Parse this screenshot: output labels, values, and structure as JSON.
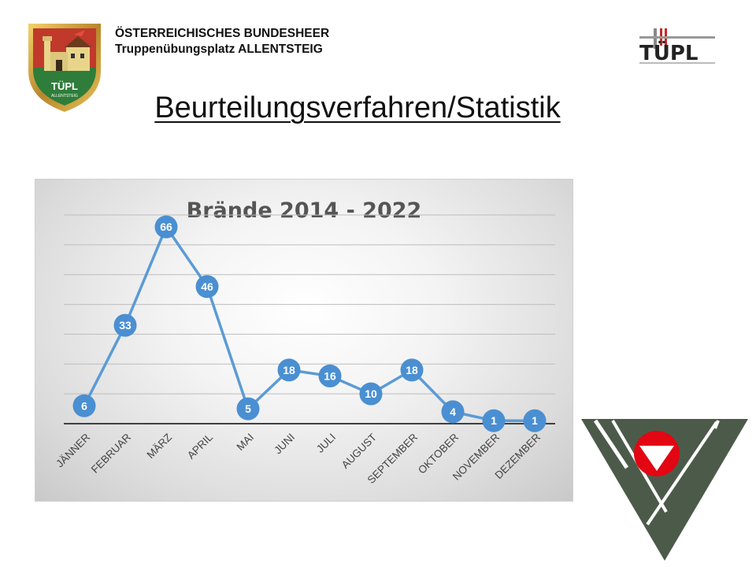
{
  "header": {
    "org_line1": "ÖSTERREICHISCHES BUNDESHEER",
    "org_line2": "Truppenübungsplatz ALLENTSTEIG"
  },
  "crest": {
    "text": "TÜPL",
    "subtext": "ALLENTSTEIG"
  },
  "tupl_logo": {
    "text": "TÜPL"
  },
  "page_title": "Beurteilungsverfahren/Statistik",
  "colors": {
    "line": "#5b9bd5",
    "marker": "#4a8fd1",
    "grid": "#bdbdbd",
    "axis": "#404040",
    "emblem_green": "#4c5b49",
    "emblem_red": "#e30613"
  },
  "chart_data": {
    "type": "line",
    "title": "Brände 2014 - 2022",
    "categories": [
      "JÄNNER",
      "FEBRUAR",
      "MÄRZ",
      "APRIL",
      "MAI",
      "JUNI",
      "JULI",
      "AUGUST",
      "SEPTEMBER",
      "OKTOBER",
      "NOVEMBER",
      "DEZEMBER"
    ],
    "values": [
      6,
      33,
      66,
      46,
      5,
      18,
      16,
      10,
      18,
      4,
      1,
      1
    ],
    "ylim": [
      0,
      70
    ],
    "grid": true,
    "data_labels": true,
    "legend": "none",
    "xlabel": "",
    "ylabel": ""
  }
}
